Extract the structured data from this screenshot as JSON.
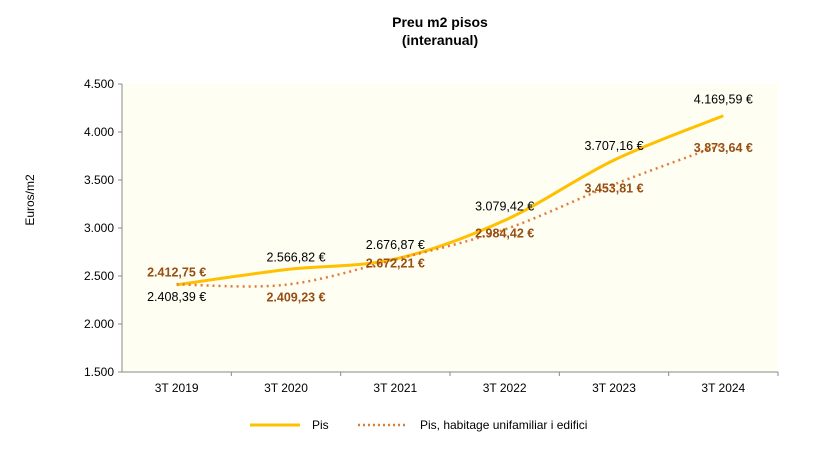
{
  "chart_data": {
    "type": "line",
    "title": "Preu m2 pisos",
    "subtitle": "(interanual)",
    "ylabel": "Euros/m2",
    "xlabel": "",
    "ylim": [
      1500,
      4500
    ],
    "yticks": [
      1500,
      2000,
      2500,
      3000,
      3500,
      4000,
      4500
    ],
    "ytick_labels": [
      "1.500",
      "2.000",
      "2.500",
      "3.000",
      "3.500",
      "4.000",
      "4.500"
    ],
    "categories": [
      "3T 2019",
      "3T 2020",
      "3T 2021",
      "3T 2022",
      "3T 2023",
      "3T 2024"
    ],
    "series": [
      {
        "name": "Pis",
        "color": "#FFC000",
        "style": "solid",
        "values": [
          2408.39,
          2566.82,
          2676.87,
          3079.42,
          3707.16,
          4169.59
        ],
        "labels": [
          "2.408,39 €",
          "2.566,82 €",
          "2.676,87 €",
          "3.079,42 €",
          "3.707,16 €",
          "4.169,59 €"
        ]
      },
      {
        "name": "Pis, habitage unifamiliar i edifici",
        "color": "#E07B39",
        "style": "dotted",
        "values": [
          2412.75,
          2409.23,
          2672.21,
          2984.42,
          3453.81,
          3873.64
        ],
        "labels": [
          "2.412,75 €",
          "2.409,23 €",
          "2.672,21 €",
          "2.984,42 €",
          "3.453,81 €",
          "3.873,64 €"
        ]
      }
    ],
    "grid": false,
    "legend": "bottom",
    "plot_background": "#FFFEF3"
  }
}
